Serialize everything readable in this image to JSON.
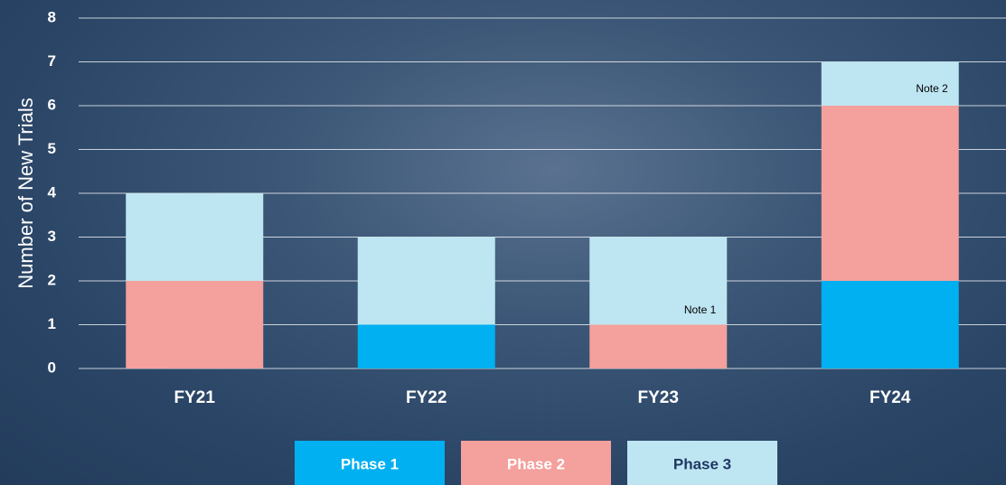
{
  "chart_data": {
    "type": "stacked-bar",
    "y_label": "Number of New Trials",
    "categories": [
      "FY21",
      "FY22",
      "FY23",
      "FY24"
    ],
    "series": [
      {
        "name": "Phase 1",
        "color": "#00b0f0",
        "text_color": "#ffffff",
        "values": [
          0,
          1,
          0,
          2
        ]
      },
      {
        "name": "Phase 2",
        "color": "#f4a09c",
        "text_color": "#ffffff",
        "values": [
          2,
          0,
          1,
          4
        ]
      },
      {
        "name": "Phase 3",
        "color": "#bee6f2",
        "text_color": "#1f3864",
        "values": [
          2,
          2,
          2,
          1
        ]
      }
    ],
    "ylim": [
      0,
      8
    ],
    "yticks": [
      0,
      1,
      2,
      3,
      4,
      5,
      6,
      7,
      8
    ],
    "grid": true,
    "annotations": [
      {
        "text": "Note 1",
        "category": "FY23"
      },
      {
        "text": "Note 2",
        "category": "FY24"
      }
    ]
  }
}
